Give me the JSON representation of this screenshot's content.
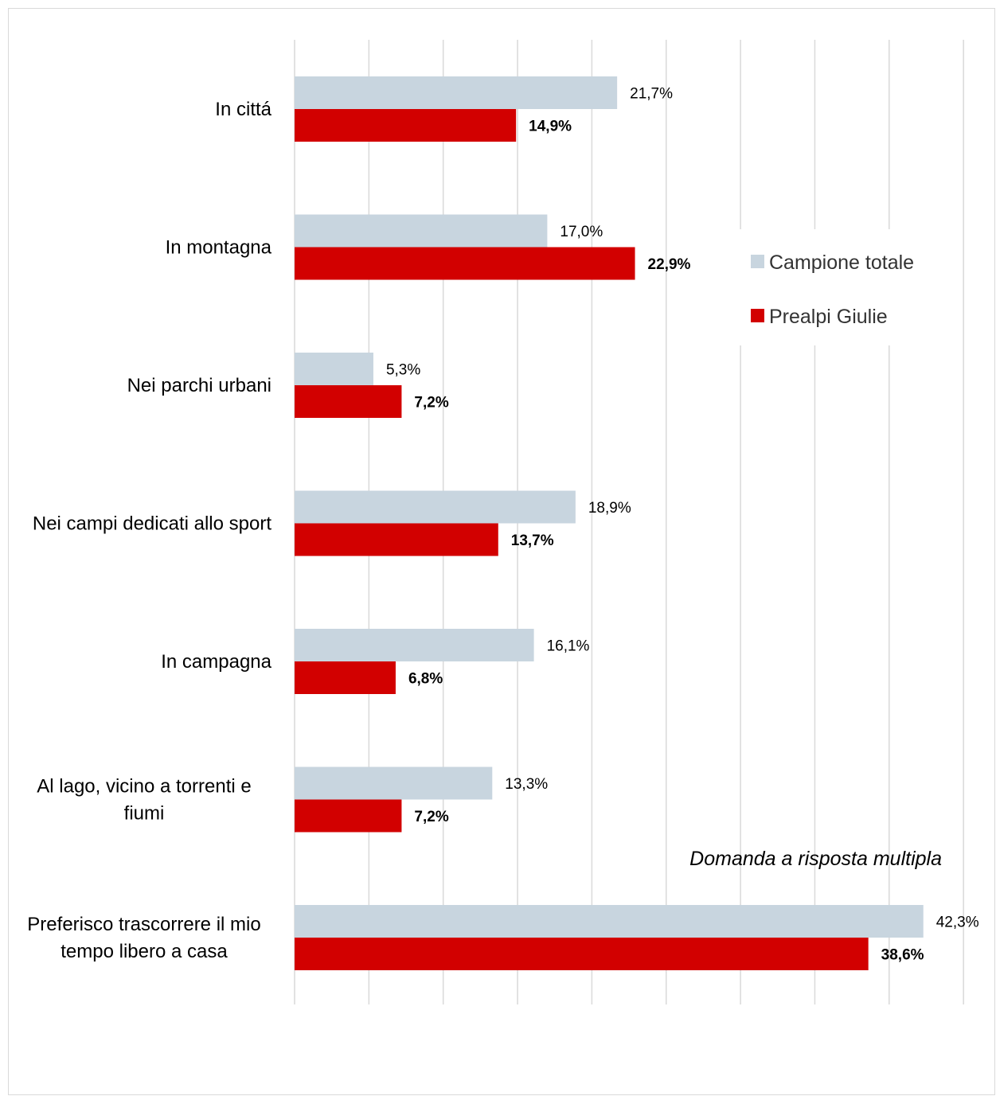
{
  "chart_data": {
    "type": "bar",
    "orientation": "horizontal",
    "categories": [
      "In cittá",
      "In montagna",
      "Nei parchi urbani",
      "Nei campi dedicati allo sport",
      "In campagna",
      "Al lago, vicino a torrenti e fiumi",
      "Preferisco trascorrere il mio tempo libero a casa"
    ],
    "category_lines": [
      [
        "In cittá"
      ],
      [
        "In montagna"
      ],
      [
        "Nei parchi urbani"
      ],
      [
        "Nei campi dedicati allo sport"
      ],
      [
        "In campagna"
      ],
      [
        "Al lago, vicino a torrenti e",
        "fiumi"
      ],
      [
        "Preferisco trascorrere il mio",
        "tempo libero a casa"
      ]
    ],
    "series": [
      {
        "name": "Campione totale",
        "values": [
          21.7,
          17.0,
          5.3,
          18.9,
          16.1,
          13.3,
          42.3
        ],
        "labels": [
          "21,7%",
          "17,0%",
          "5,3%",
          "18,9%",
          "16,1%",
          "13,3%",
          "42,3%"
        ],
        "color": "#c8d5df",
        "label_bold": false
      },
      {
        "name": "Prealpi Giulie",
        "values": [
          14.9,
          22.9,
          7.2,
          13.7,
          6.8,
          7.2,
          38.6
        ],
        "labels": [
          "14,9%",
          "22,9%",
          "7,2%",
          "13,7%",
          "6,8%",
          "7,2%",
          "38,6%"
        ],
        "color": "#d20000",
        "label_bold": true
      }
    ],
    "xlim": [
      0,
      45
    ],
    "gridline_step": 5,
    "grid": true,
    "legend_position": "right",
    "title": "",
    "xlabel": "",
    "ylabel": ""
  },
  "footnote": "Domanda a risposta multipla",
  "colors": {
    "gridline": "#d9d9d9",
    "frame": "#d9d9d9"
  }
}
